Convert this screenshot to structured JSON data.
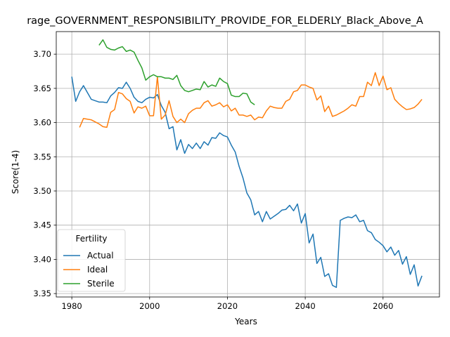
{
  "chart_data": {
    "type": "line",
    "title": "rage_GOVERNMENT_RESPONSIBILITY_PROVIDE_FOR_ELDERLY_Black_Above_A",
    "xlabel": "Years",
    "ylabel": "Score(1-4)",
    "xlim": [
      1976,
      2074.5
    ],
    "ylim": [
      3.345,
      3.733
    ],
    "xticks": [
      1980,
      2000,
      2020,
      2040,
      2060
    ],
    "yticks": [
      3.35,
      3.4,
      3.45,
      3.5,
      3.55,
      3.6,
      3.65,
      3.7
    ],
    "ytick_labels": [
      "3.35",
      "3.40",
      "3.45",
      "3.50",
      "3.55",
      "3.60",
      "3.65",
      "3.70"
    ],
    "grid": true,
    "legend": {
      "title": "Fertility",
      "placement": "lower-left"
    },
    "series": [
      {
        "name": "Actual",
        "color": "#1f77b4",
        "x": [
          1980,
          1981,
          1982,
          1983,
          1984,
          1985,
          1986,
          1987,
          1988,
          1989,
          1990,
          1991,
          1992,
          1993,
          1994,
          1995,
          1996,
          1997,
          1998,
          1999,
          2000,
          2001,
          2002,
          2003,
          2004,
          2005,
          2006,
          2007,
          2008,
          2009,
          2010,
          2011,
          2012,
          2013,
          2014,
          2015,
          2016,
          2017,
          2018,
          2019,
          2020,
          2021,
          2022,
          2023,
          2024,
          2025,
          2026,
          2027,
          2028,
          2029,
          2030,
          2031,
          2032,
          2033,
          2034,
          2035,
          2036,
          2037,
          2038,
          2039,
          2040,
          2041,
          2042,
          2043,
          2044,
          2045,
          2046,
          2047,
          2048,
          2049,
          2050,
          2051,
          2052,
          2053,
          2054,
          2055,
          2056,
          2057,
          2058,
          2059,
          2060,
          2061,
          2062,
          2063,
          2064,
          2065,
          2066,
          2067,
          2068,
          2069,
          2070
        ],
        "values": [
          3.667,
          3.631,
          3.645,
          3.654,
          3.644,
          3.634,
          3.632,
          3.63,
          3.63,
          3.629,
          3.639,
          3.644,
          3.651,
          3.65,
          3.659,
          3.65,
          3.637,
          3.631,
          3.629,
          3.634,
          3.637,
          3.636,
          3.641,
          3.625,
          3.615,
          3.591,
          3.594,
          3.56,
          3.575,
          3.555,
          3.568,
          3.562,
          3.57,
          3.562,
          3.572,
          3.567,
          3.578,
          3.577,
          3.585,
          3.581,
          3.579,
          3.567,
          3.557,
          3.536,
          3.519,
          3.497,
          3.487,
          3.465,
          3.47,
          3.455,
          3.47,
          3.459,
          3.463,
          3.467,
          3.472,
          3.473,
          3.479,
          3.471,
          3.481,
          3.453,
          3.467,
          3.424,
          3.437,
          3.394,
          3.403,
          3.375,
          3.379,
          3.362,
          3.359,
          3.457,
          3.46,
          3.462,
          3.461,
          3.465,
          3.455,
          3.457,
          3.442,
          3.439,
          3.429,
          3.425,
          3.42,
          3.411,
          3.418,
          3.406,
          3.413,
          3.393,
          3.404,
          3.378,
          3.392,
          3.361,
          3.376
        ]
      },
      {
        "name": "Ideal",
        "color": "#ff7f0e",
        "x": [
          1982,
          1983,
          1984,
          1985,
          1986,
          1987,
          1988,
          1989,
          1990,
          1991,
          1992,
          1993,
          1994,
          1995,
          1996,
          1997,
          1998,
          1999,
          2000,
          2001,
          2002,
          2003,
          2004,
          2005,
          2006,
          2007,
          2008,
          2009,
          2010,
          2011,
          2012,
          2013,
          2014,
          2015,
          2016,
          2017,
          2018,
          2019,
          2020,
          2021,
          2022,
          2023,
          2024,
          2025,
          2026,
          2027,
          2028,
          2029,
          2030,
          2031,
          2032,
          2033,
          2034,
          2035,
          2036,
          2037,
          2038,
          2039,
          2040,
          2041,
          2042,
          2043,
          2044,
          2045,
          2046,
          2047,
          2048,
          2049,
          2050,
          2051,
          2052,
          2053,
          2054,
          2055,
          2056,
          2057,
          2058,
          2059,
          2060,
          2061,
          2062,
          2063,
          2064,
          2065,
          2066,
          2067,
          2068,
          2069,
          2070
        ],
        "values": [
          3.593,
          3.606,
          3.605,
          3.604,
          3.601,
          3.598,
          3.594,
          3.593,
          3.615,
          3.619,
          3.644,
          3.642,
          3.635,
          3.631,
          3.614,
          3.623,
          3.621,
          3.624,
          3.61,
          3.61,
          3.667,
          3.605,
          3.611,
          3.632,
          3.609,
          3.6,
          3.605,
          3.6,
          3.613,
          3.618,
          3.621,
          3.621,
          3.629,
          3.632,
          3.624,
          3.626,
          3.629,
          3.623,
          3.626,
          3.617,
          3.621,
          3.611,
          3.611,
          3.609,
          3.611,
          3.604,
          3.608,
          3.607,
          3.617,
          3.624,
          3.622,
          3.621,
          3.621,
          3.631,
          3.634,
          3.645,
          3.647,
          3.655,
          3.655,
          3.652,
          3.65,
          3.633,
          3.639,
          3.616,
          3.624,
          3.609,
          3.611,
          3.614,
          3.617,
          3.621,
          3.626,
          3.624,
          3.638,
          3.638,
          3.659,
          3.654,
          3.673,
          3.654,
          3.668,
          3.648,
          3.651,
          3.634,
          3.628,
          3.623,
          3.619,
          3.62,
          3.622,
          3.627,
          3.634
        ]
      },
      {
        "name": "Sterile",
        "color": "#2ca02c",
        "x": [
          1987,
          1988,
          1989,
          1990,
          1991,
          1992,
          1993,
          1994,
          1995,
          1996,
          1997,
          1998,
          1999,
          2000,
          2001,
          2002,
          2003,
          2004,
          2005,
          2006,
          2007,
          2008,
          2009,
          2010,
          2011,
          2012,
          2013,
          2014,
          2015,
          2016,
          2017,
          2018,
          2019,
          2020,
          2021,
          2022,
          2023,
          2024,
          2025,
          2026,
          2027
        ],
        "values": [
          3.713,
          3.721,
          3.71,
          3.707,
          3.706,
          3.709,
          3.711,
          3.704,
          3.706,
          3.703,
          3.691,
          3.68,
          3.662,
          3.667,
          3.67,
          3.667,
          3.667,
          3.665,
          3.665,
          3.663,
          3.669,
          3.654,
          3.647,
          3.645,
          3.647,
          3.649,
          3.648,
          3.66,
          3.652,
          3.655,
          3.653,
          3.665,
          3.66,
          3.657,
          3.64,
          3.638,
          3.638,
          3.643,
          3.642,
          3.63,
          3.626
        ]
      }
    ]
  }
}
